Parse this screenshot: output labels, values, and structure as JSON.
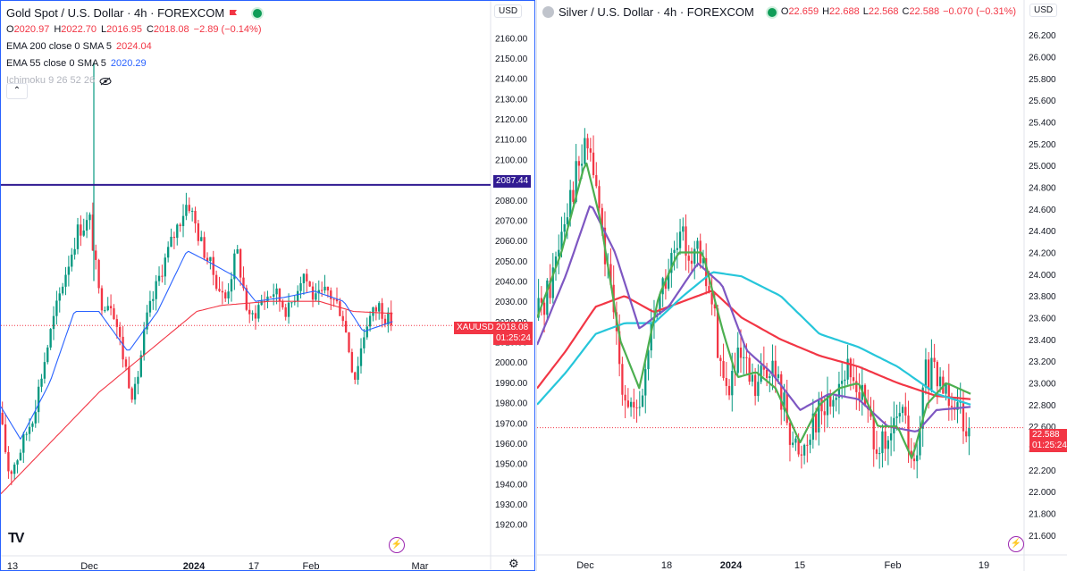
{
  "left": {
    "title": "Gold Spot / U.S. Dollar · 4h · FOREXCOM",
    "ohlc": [
      {
        "k": "O",
        "v": "2020.97"
      },
      {
        "k": "H",
        "v": "2022.70"
      },
      {
        "k": "L",
        "v": "2016.95"
      },
      {
        "k": "C",
        "v": "2018.08"
      }
    ],
    "change": "−2.89 (−0.14%)",
    "indicators": [
      {
        "label": "EMA 200 close 0 SMA 5",
        "value": "2024.04",
        "color": "#f23645"
      },
      {
        "label": "EMA 55 close 0 SMA 5",
        "value": "2020.29",
        "color": "#2962ff"
      },
      {
        "label": "Ichimoku 9 26 52 26",
        "value": "",
        "color": "#b2b5be"
      }
    ],
    "currency": "USD",
    "hline_tag": "2087.44",
    "symbol_tag": "XAUUSD",
    "price_tag": "2018.08",
    "timer_tag": "01:25:24",
    "collapse_glyph": "⌃",
    "logo_text": "TV"
  },
  "right": {
    "title": "Silver / U.S. Dollar · 4h · FOREXCOM",
    "ohlc": [
      {
        "k": "O",
        "v": "22.659"
      },
      {
        "k": "H",
        "v": "22.688"
      },
      {
        "k": "L",
        "v": "22.568"
      },
      {
        "k": "C",
        "v": "22.588"
      }
    ],
    "change": "−0.070 (−0.31%)",
    "currency": "USD",
    "price_tag": "22.588",
    "timer_tag": "01:25:24"
  },
  "chart_data": [
    {
      "type": "candlestick",
      "title": "Gold Spot / U.S. Dollar · 4h · FOREXCOM",
      "ylim": [
        1915,
        2165
      ],
      "y_ticks": [
        "2160.00",
        "2150.00",
        "2140.00",
        "2130.00",
        "2120.00",
        "2110.00",
        "2100.00",
        "2090.00",
        "2080.00",
        "2070.00",
        "2060.00",
        "2050.00",
        "2040.00",
        "2030.00",
        "2020.00",
        "2010.00",
        "2000.00",
        "1990.00",
        "1980.00",
        "1970.00",
        "1960.00",
        "1950.00",
        "1940.00",
        "1930.00",
        "1920.00"
      ],
      "x_ticks": [
        "13",
        "Dec",
        "2024",
        "17",
        "Feb",
        "Mar"
      ],
      "horizontal_line": 2087.44,
      "last_close": 2018.08,
      "close_path": [
        {
          "t": 0.0,
          "c": 1975
        },
        {
          "t": 0.02,
          "c": 1945
        },
        {
          "t": 0.04,
          "c": 1955
        },
        {
          "t": 0.07,
          "c": 1975
        },
        {
          "t": 0.1,
          "c": 2010
        },
        {
          "t": 0.13,
          "c": 2040
        },
        {
          "t": 0.16,
          "c": 2065
        },
        {
          "t": 0.185,
          "c": 2070
        },
        {
          "t": 0.205,
          "c": 2030
        },
        {
          "t": 0.23,
          "c": 2030
        },
        {
          "t": 0.255,
          "c": 2000
        },
        {
          "t": 0.275,
          "c": 1982
        },
        {
          "t": 0.3,
          "c": 2020
        },
        {
          "t": 0.33,
          "c": 2045
        },
        {
          "t": 0.36,
          "c": 2065
        },
        {
          "t": 0.385,
          "c": 2080
        },
        {
          "t": 0.41,
          "c": 2060
        },
        {
          "t": 0.435,
          "c": 2045
        },
        {
          "t": 0.46,
          "c": 2030
        },
        {
          "t": 0.485,
          "c": 2055
        },
        {
          "t": 0.51,
          "c": 2020
        },
        {
          "t": 0.535,
          "c": 2030
        },
        {
          "t": 0.56,
          "c": 2035
        },
        {
          "t": 0.59,
          "c": 2025
        },
        {
          "t": 0.62,
          "c": 2045
        },
        {
          "t": 0.645,
          "c": 2030
        },
        {
          "t": 0.67,
          "c": 2035
        },
        {
          "t": 0.7,
          "c": 2025
        },
        {
          "t": 0.725,
          "c": 1992
        },
        {
          "t": 0.75,
          "c": 2020
        },
        {
          "t": 0.775,
          "c": 2028
        },
        {
          "t": 0.8,
          "c": 2018
        }
      ],
      "series": [
        {
          "name": "EMA 200 close 0 SMA 5",
          "color": "#f23645",
          "values": [
            {
              "t": 0.0,
              "v": 1935
            },
            {
              "t": 0.1,
              "v": 1960
            },
            {
              "t": 0.2,
              "v": 1985
            },
            {
              "t": 0.3,
              "v": 2005
            },
            {
              "t": 0.4,
              "v": 2025
            },
            {
              "t": 0.45,
              "v": 2028
            },
            {
              "t": 0.55,
              "v": 2030
            },
            {
              "t": 0.65,
              "v": 2030
            },
            {
              "t": 0.72,
              "v": 2025
            },
            {
              "t": 0.8,
              "v": 2024
            }
          ]
        },
        {
          "name": "EMA 55 close 0 SMA 5",
          "color": "#2962ff",
          "values": [
            {
              "t": 0.0,
              "v": 1978
            },
            {
              "t": 0.04,
              "v": 1962
            },
            {
              "t": 0.1,
              "v": 1990
            },
            {
              "t": 0.15,
              "v": 2025
            },
            {
              "t": 0.2,
              "v": 2025
            },
            {
              "t": 0.26,
              "v": 2005
            },
            {
              "t": 0.32,
              "v": 2025
            },
            {
              "t": 0.38,
              "v": 2055
            },
            {
              "t": 0.42,
              "v": 2050
            },
            {
              "t": 0.48,
              "v": 2042
            },
            {
              "t": 0.52,
              "v": 2030
            },
            {
              "t": 0.58,
              "v": 2032
            },
            {
              "t": 0.64,
              "v": 2035
            },
            {
              "t": 0.7,
              "v": 2030
            },
            {
              "t": 0.74,
              "v": 2015
            },
            {
              "t": 0.8,
              "v": 2020
            }
          ]
        }
      ]
    },
    {
      "type": "candlestick",
      "title": "Silver / U.S. Dollar · 4h · FOREXCOM",
      "ylim": [
        21.5,
        26.3
      ],
      "y_ticks": [
        "26.200",
        "26.000",
        "25.800",
        "25.600",
        "25.400",
        "25.200",
        "25.000",
        "24.800",
        "24.600",
        "24.400",
        "24.200",
        "24.000",
        "23.800",
        "23.600",
        "23.400",
        "23.200",
        "23.000",
        "22.800",
        "22.600",
        "22.400",
        "22.200",
        "22.000",
        "21.800",
        "21.600"
      ],
      "x_ticks": [
        "Dec",
        "18",
        "2024",
        "15",
        "Feb",
        "19"
      ],
      "last_close": 22.588,
      "close_path": [
        {
          "t": 0.0,
          "c": 23.6
        },
        {
          "t": 0.03,
          "c": 23.9
        },
        {
          "t": 0.06,
          "c": 24.6
        },
        {
          "t": 0.09,
          "c": 25.0
        },
        {
          "t": 0.11,
          "c": 25.2
        },
        {
          "t": 0.13,
          "c": 24.6
        },
        {
          "t": 0.15,
          "c": 23.9
        },
        {
          "t": 0.18,
          "c": 23.0
        },
        {
          "t": 0.21,
          "c": 22.6
        },
        {
          "t": 0.24,
          "c": 23.6
        },
        {
          "t": 0.27,
          "c": 24.0
        },
        {
          "t": 0.3,
          "c": 24.3
        },
        {
          "t": 0.33,
          "c": 24.2
        },
        {
          "t": 0.36,
          "c": 23.8
        },
        {
          "t": 0.39,
          "c": 22.9
        },
        {
          "t": 0.42,
          "c": 23.2
        },
        {
          "t": 0.45,
          "c": 22.9
        },
        {
          "t": 0.48,
          "c": 23.2
        },
        {
          "t": 0.51,
          "c": 22.8
        },
        {
          "t": 0.54,
          "c": 22.3
        },
        {
          "t": 0.57,
          "c": 22.7
        },
        {
          "t": 0.6,
          "c": 22.8
        },
        {
          "t": 0.63,
          "c": 23.1
        },
        {
          "t": 0.66,
          "c": 23.0
        },
        {
          "t": 0.69,
          "c": 22.6
        },
        {
          "t": 0.72,
          "c": 22.3
        },
        {
          "t": 0.75,
          "c": 22.8
        },
        {
          "t": 0.78,
          "c": 22.1
        },
        {
          "t": 0.8,
          "c": 23.1
        },
        {
          "t": 0.83,
          "c": 23.0
        },
        {
          "t": 0.86,
          "c": 22.9
        },
        {
          "t": 0.89,
          "c": 22.6
        }
      ],
      "series": [
        {
          "color": "#f23645",
          "values": [
            {
              "t": 0.0,
              "v": 22.95
            },
            {
              "t": 0.06,
              "v": 23.3
            },
            {
              "t": 0.12,
              "v": 23.7
            },
            {
              "t": 0.18,
              "v": 23.8
            },
            {
              "t": 0.24,
              "v": 23.65
            },
            {
              "t": 0.3,
              "v": 23.75
            },
            {
              "t": 0.36,
              "v": 23.85
            },
            {
              "t": 0.42,
              "v": 23.6
            },
            {
              "t": 0.5,
              "v": 23.4
            },
            {
              "t": 0.58,
              "v": 23.25
            },
            {
              "t": 0.66,
              "v": 23.15
            },
            {
              "t": 0.74,
              "v": 23.0
            },
            {
              "t": 0.82,
              "v": 22.88
            },
            {
              "t": 0.89,
              "v": 22.85
            }
          ]
        },
        {
          "color": "#26c6da",
          "values": [
            {
              "t": 0.0,
              "v": 22.8
            },
            {
              "t": 0.06,
              "v": 23.1
            },
            {
              "t": 0.12,
              "v": 23.45
            },
            {
              "t": 0.18,
              "v": 23.55
            },
            {
              "t": 0.24,
              "v": 23.55
            },
            {
              "t": 0.3,
              "v": 23.8
            },
            {
              "t": 0.36,
              "v": 24.02
            },
            {
              "t": 0.42,
              "v": 23.98
            },
            {
              "t": 0.5,
              "v": 23.8
            },
            {
              "t": 0.58,
              "v": 23.45
            },
            {
              "t": 0.66,
              "v": 23.33
            },
            {
              "t": 0.74,
              "v": 23.15
            },
            {
              "t": 0.82,
              "v": 22.9
            },
            {
              "t": 0.89,
              "v": 22.8
            }
          ]
        },
        {
          "color": "#7e57c2",
          "values": [
            {
              "t": 0.0,
              "v": 23.35
            },
            {
              "t": 0.06,
              "v": 24.0
            },
            {
              "t": 0.11,
              "v": 24.65
            },
            {
              "t": 0.16,
              "v": 24.2
            },
            {
              "t": 0.21,
              "v": 23.5
            },
            {
              "t": 0.27,
              "v": 23.7
            },
            {
              "t": 0.33,
              "v": 24.1
            },
            {
              "t": 0.38,
              "v": 23.9
            },
            {
              "t": 0.43,
              "v": 23.3
            },
            {
              "t": 0.48,
              "v": 23.1
            },
            {
              "t": 0.54,
              "v": 22.75
            },
            {
              "t": 0.6,
              "v": 22.9
            },
            {
              "t": 0.66,
              "v": 22.85
            },
            {
              "t": 0.72,
              "v": 22.6
            },
            {
              "t": 0.78,
              "v": 22.55
            },
            {
              "t": 0.82,
              "v": 22.75
            },
            {
              "t": 0.89,
              "v": 22.78
            }
          ]
        },
        {
          "color": "#4caf50",
          "values": [
            {
              "t": 0.0,
              "v": 23.6
            },
            {
              "t": 0.05,
              "v": 24.2
            },
            {
              "t": 0.1,
              "v": 25.05
            },
            {
              "t": 0.13,
              "v": 24.5
            },
            {
              "t": 0.17,
              "v": 23.4
            },
            {
              "t": 0.21,
              "v": 22.95
            },
            {
              "t": 0.25,
              "v": 23.8
            },
            {
              "t": 0.29,
              "v": 24.2
            },
            {
              "t": 0.34,
              "v": 24.2
            },
            {
              "t": 0.38,
              "v": 23.5
            },
            {
              "t": 0.41,
              "v": 23.05
            },
            {
              "t": 0.45,
              "v": 23.1
            },
            {
              "t": 0.49,
              "v": 22.95
            },
            {
              "t": 0.54,
              "v": 22.45
            },
            {
              "t": 0.58,
              "v": 22.8
            },
            {
              "t": 0.62,
              "v": 22.95
            },
            {
              "t": 0.66,
              "v": 23.0
            },
            {
              "t": 0.7,
              "v": 22.6
            },
            {
              "t": 0.74,
              "v": 22.6
            },
            {
              "t": 0.77,
              "v": 22.3
            },
            {
              "t": 0.8,
              "v": 22.8
            },
            {
              "t": 0.84,
              "v": 23.0
            },
            {
              "t": 0.89,
              "v": 22.9
            }
          ]
        }
      ]
    }
  ]
}
